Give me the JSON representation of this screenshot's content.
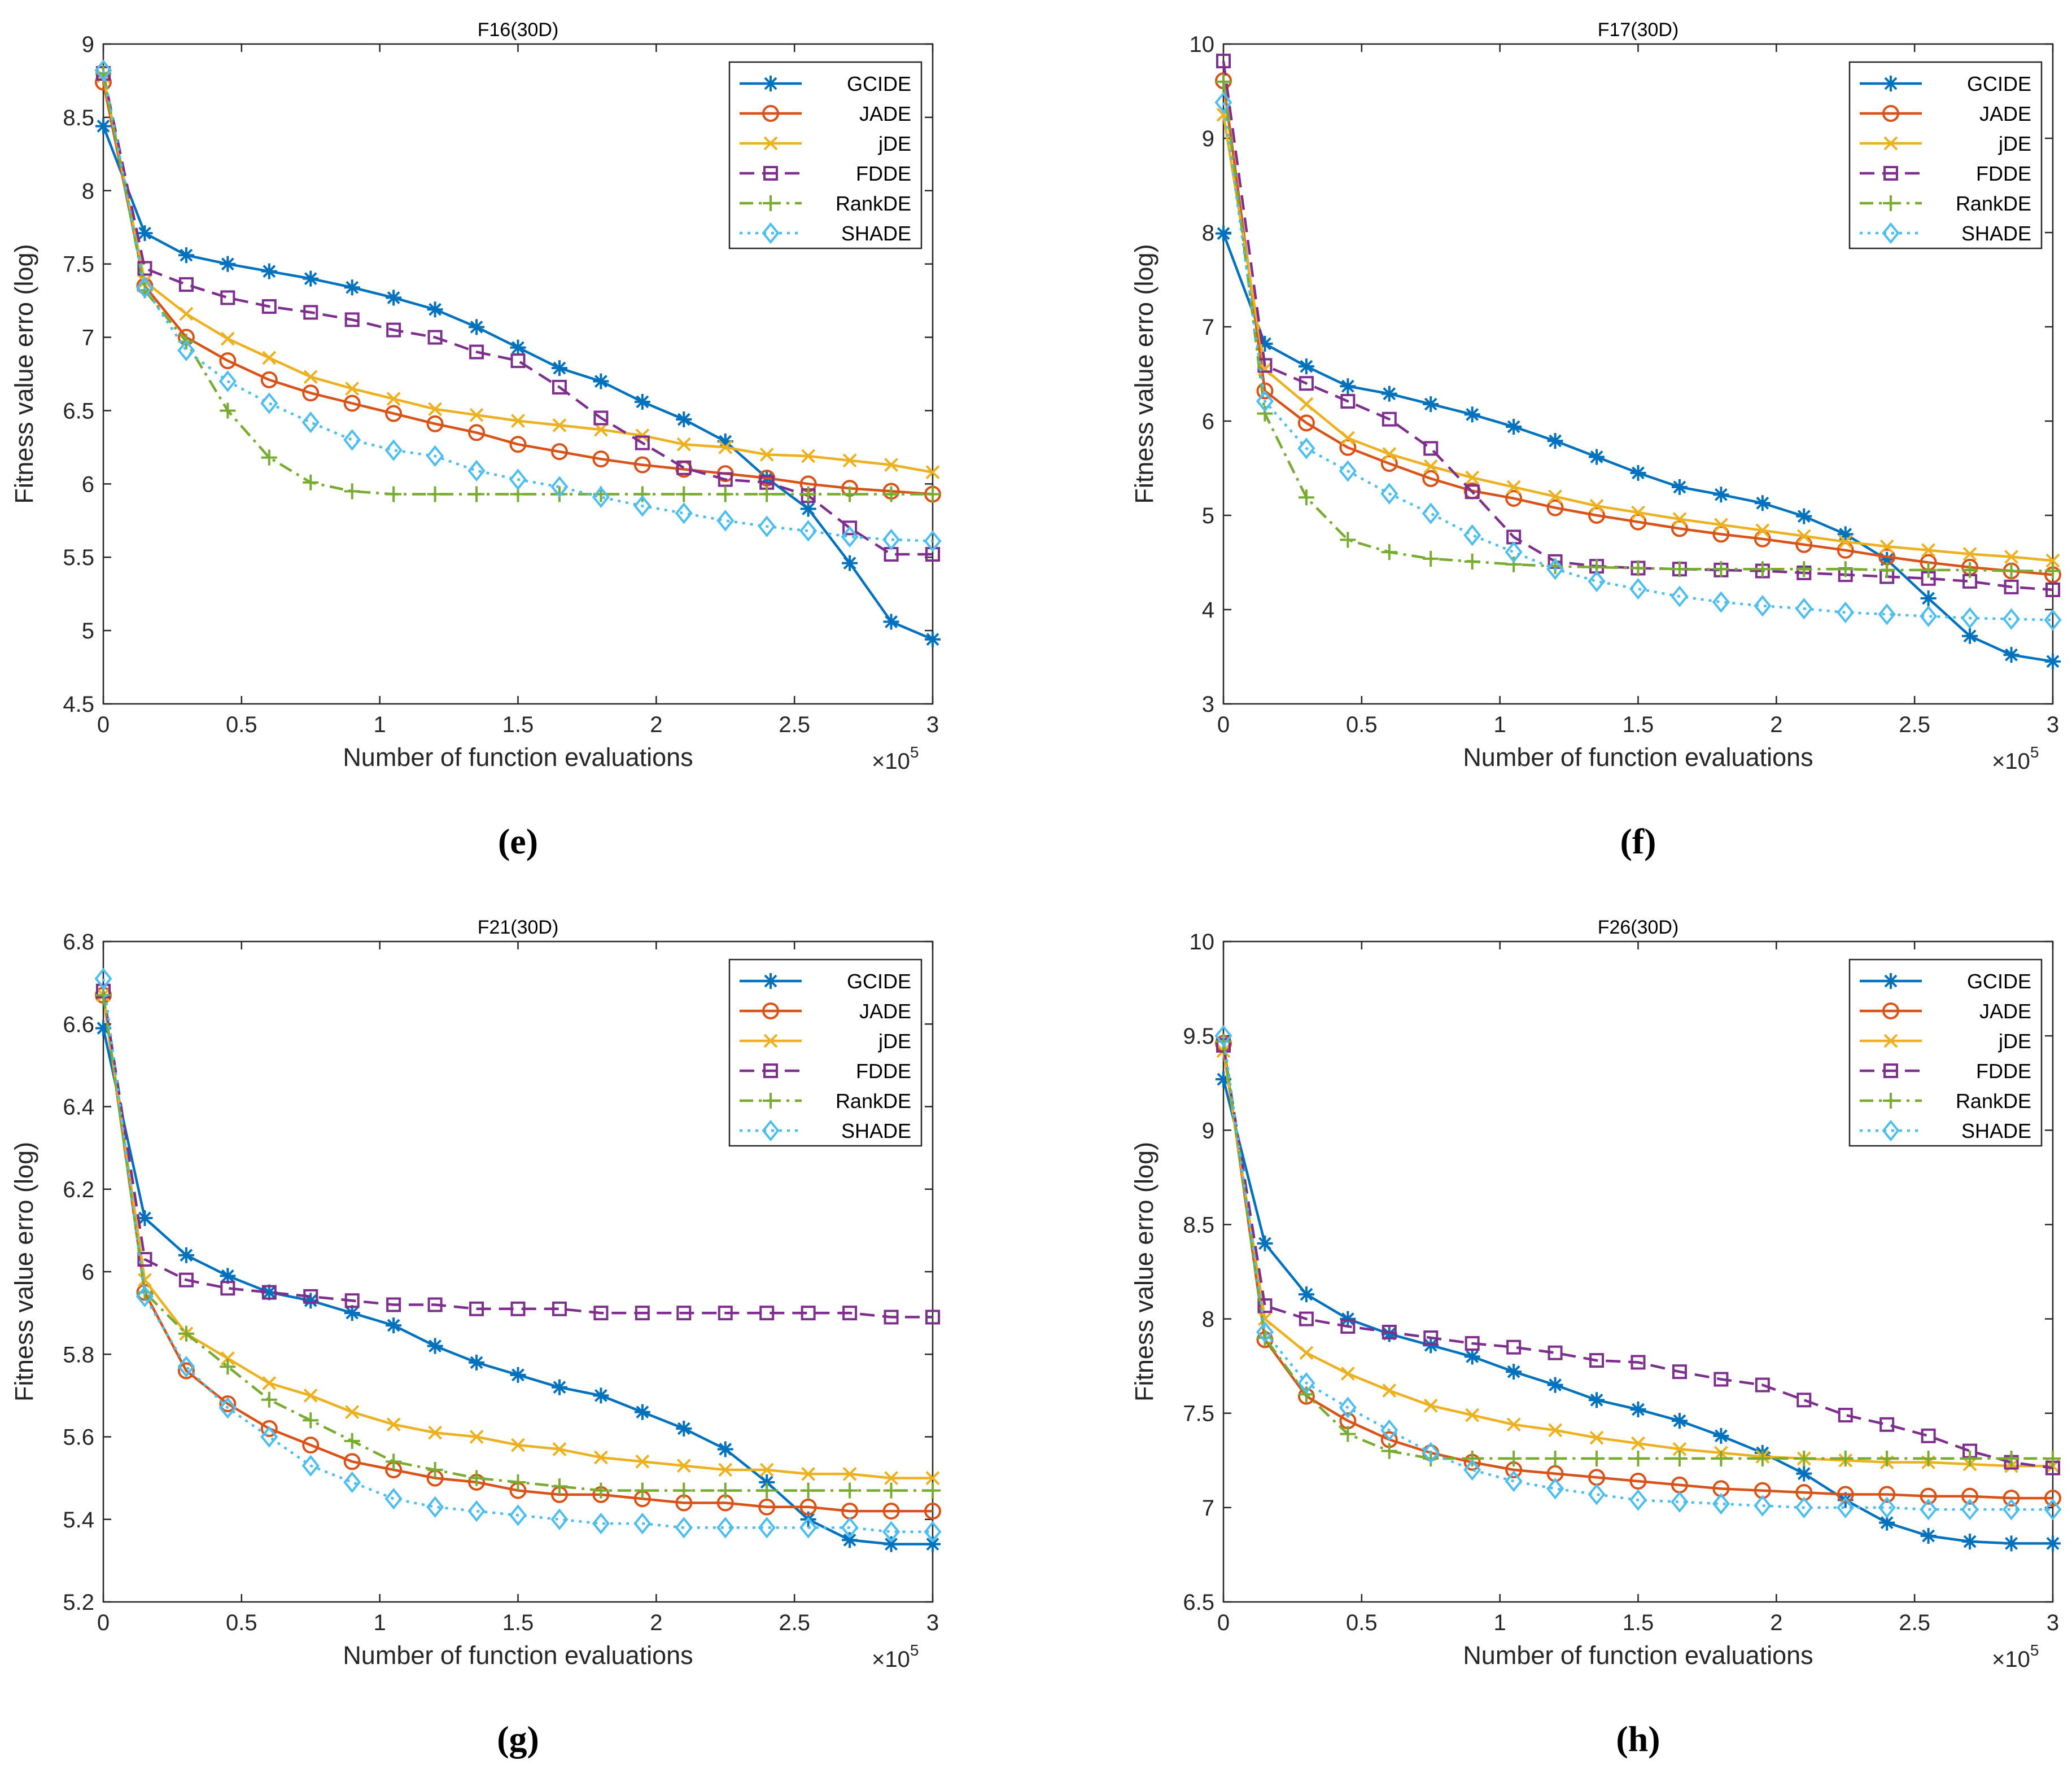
{
  "figure": {
    "series_styles": [
      {
        "name": "GCIDE",
        "color": "#0072BD",
        "dash": "",
        "marker": "asterisk"
      },
      {
        "name": "JADE",
        "color": "#D95319",
        "dash": "",
        "marker": "circle"
      },
      {
        "name": "jDE",
        "color": "#EDB120",
        "dash": "",
        "marker": "cross"
      },
      {
        "name": "FDDE",
        "color": "#7E2F8E",
        "dash": "dash",
        "marker": "square"
      },
      {
        "name": "RankDE",
        "color": "#77AC30",
        "dash": "dashdot",
        "marker": "plus"
      },
      {
        "name": "SHADE",
        "color": "#4DBEEE",
        "dash": "dot",
        "marker": "diamond"
      }
    ]
  },
  "chart_data": [
    {
      "type": "line",
      "title": "F16(30D)",
      "caption": "(e)",
      "xlabel": "Number of function evaluations",
      "ylabel": "Fitness value erro (log)",
      "x_multiplier": "×10",
      "x_exponent": "5",
      "xlim": [
        0,
        3
      ],
      "ylim": [
        4.5,
        9
      ],
      "xticks": [
        0,
        0.5,
        1,
        1.5,
        2,
        2.5,
        3
      ],
      "xtick_labels": [
        "0",
        "0.5",
        "1",
        "1.5",
        "2",
        "2.5",
        "3"
      ],
      "yticks": [
        4.5,
        5,
        5.5,
        6,
        6.5,
        7,
        7.5,
        8,
        8.5,
        9
      ],
      "ytick_labels": [
        "4.5",
        "5",
        "5.5",
        "6",
        "6.5",
        "7",
        "7.5",
        "8",
        "8.5",
        "9"
      ],
      "legend_position": "top-right",
      "x": [
        0,
        0.15,
        0.3,
        0.45,
        0.6,
        0.75,
        0.9,
        1.05,
        1.2,
        1.35,
        1.5,
        1.65,
        1.8,
        1.95,
        2.1,
        2.25,
        2.4,
        2.55,
        2.7,
        2.85,
        3.0
      ],
      "series": [
        {
          "name": "GCIDE",
          "values": [
            8.44,
            7.71,
            7.56,
            7.5,
            7.45,
            7.4,
            7.34,
            7.27,
            7.19,
            7.07,
            6.93,
            6.79,
            6.7,
            6.56,
            6.44,
            6.29,
            6.04,
            5.83,
            5.46,
            5.06,
            4.94
          ]
        },
        {
          "name": "JADE",
          "values": [
            8.74,
            7.35,
            7.0,
            6.84,
            6.71,
            6.62,
            6.55,
            6.48,
            6.41,
            6.35,
            6.27,
            6.22,
            6.17,
            6.13,
            6.1,
            6.07,
            6.04,
            6.0,
            5.97,
            5.95,
            5.93
          ]
        },
        {
          "name": "jDE",
          "values": [
            8.78,
            7.38,
            7.16,
            6.99,
            6.86,
            6.73,
            6.65,
            6.58,
            6.51,
            6.47,
            6.43,
            6.4,
            6.37,
            6.33,
            6.27,
            6.25,
            6.2,
            6.19,
            6.16,
            6.13,
            6.08
          ]
        },
        {
          "name": "FDDE",
          "values": [
            8.8,
            7.47,
            7.36,
            7.27,
            7.21,
            7.17,
            7.12,
            7.05,
            7.0,
            6.9,
            6.84,
            6.66,
            6.45,
            6.28,
            6.11,
            6.03,
            6.01,
            5.92,
            5.7,
            5.52,
            5.52
          ]
        },
        {
          "name": "RankDE",
          "values": [
            8.8,
            7.32,
            6.97,
            6.5,
            6.18,
            6.01,
            5.95,
            5.93,
            5.93,
            5.93,
            5.93,
            5.93,
            5.93,
            5.93,
            5.93,
            5.93,
            5.93,
            5.93,
            5.93,
            5.93,
            5.93
          ]
        },
        {
          "name": "SHADE",
          "values": [
            8.82,
            7.34,
            6.91,
            6.7,
            6.55,
            6.42,
            6.3,
            6.23,
            6.19,
            6.09,
            6.03,
            5.98,
            5.91,
            5.85,
            5.8,
            5.75,
            5.71,
            5.68,
            5.64,
            5.62,
            5.61
          ]
        }
      ]
    },
    {
      "type": "line",
      "title": "F17(30D)",
      "caption": "(f)",
      "xlabel": "Number of function evaluations",
      "ylabel": "Fitness value erro (log)",
      "x_multiplier": "×10",
      "x_exponent": "5",
      "xlim": [
        0,
        3
      ],
      "ylim": [
        3,
        10
      ],
      "xticks": [
        0,
        0.5,
        1,
        1.5,
        2,
        2.5,
        3
      ],
      "xtick_labels": [
        "0",
        "0.5",
        "1",
        "1.5",
        "2",
        "2.5",
        "3"
      ],
      "yticks": [
        3,
        4,
        5,
        6,
        7,
        8,
        9,
        10
      ],
      "ytick_labels": [
        "3",
        "4",
        "5",
        "6",
        "7",
        "8",
        "9",
        "10"
      ],
      "legend_position": "top-right",
      "x": [
        0,
        0.15,
        0.3,
        0.45,
        0.6,
        0.75,
        0.9,
        1.05,
        1.2,
        1.35,
        1.5,
        1.65,
        1.8,
        1.95,
        2.1,
        2.25,
        2.4,
        2.55,
        2.7,
        2.85,
        3.0
      ],
      "series": [
        {
          "name": "GCIDE",
          "values": [
            7.99,
            6.82,
            6.58,
            6.37,
            6.29,
            6.18,
            6.07,
            5.94,
            5.79,
            5.62,
            5.45,
            5.3,
            5.22,
            5.13,
            4.99,
            4.8,
            4.53,
            4.12,
            3.72,
            3.52,
            3.45
          ]
        },
        {
          "name": "JADE",
          "values": [
            9.61,
            6.32,
            5.98,
            5.72,
            5.55,
            5.39,
            5.26,
            5.18,
            5.08,
            5.0,
            4.93,
            4.86,
            4.8,
            4.75,
            4.69,
            4.63,
            4.56,
            4.5,
            4.45,
            4.41,
            4.37
          ]
        },
        {
          "name": "jDE",
          "values": [
            9.25,
            6.55,
            6.18,
            5.82,
            5.65,
            5.52,
            5.4,
            5.3,
            5.2,
            5.1,
            5.03,
            4.96,
            4.9,
            4.84,
            4.78,
            4.72,
            4.67,
            4.63,
            4.59,
            4.56,
            4.52
          ]
        },
        {
          "name": "FDDE",
          "values": [
            9.82,
            6.59,
            6.4,
            6.21,
            6.02,
            5.71,
            5.25,
            4.77,
            4.51,
            4.46,
            4.44,
            4.43,
            4.42,
            4.41,
            4.39,
            4.37,
            4.35,
            4.33,
            4.3,
            4.24,
            4.21
          ]
        },
        {
          "name": "RankDE",
          "values": [
            9.6,
            6.08,
            5.19,
            4.74,
            4.61,
            4.54,
            4.51,
            4.48,
            4.46,
            4.45,
            4.44,
            4.43,
            4.43,
            4.43,
            4.43,
            4.43,
            4.42,
            4.42,
            4.42,
            4.41,
            4.41
          ]
        },
        {
          "name": "SHADE",
          "values": [
            9.38,
            6.21,
            5.71,
            5.47,
            5.23,
            5.02,
            4.79,
            4.61,
            4.43,
            4.3,
            4.22,
            4.14,
            4.08,
            4.04,
            4.01,
            3.97,
            3.95,
            3.93,
            3.91,
            3.9,
            3.89
          ]
        }
      ]
    },
    {
      "type": "line",
      "title": "F21(30D)",
      "caption": "(g)",
      "xlabel": "Number of function evaluations",
      "ylabel": "Fitness value erro (log)",
      "x_multiplier": "×10",
      "x_exponent": "5",
      "xlim": [
        0,
        3
      ],
      "ylim": [
        5.2,
        6.8
      ],
      "xticks": [
        0,
        0.5,
        1,
        1.5,
        2,
        2.5,
        3
      ],
      "xtick_labels": [
        "0",
        "0.5",
        "1",
        "1.5",
        "2",
        "2.5",
        "3"
      ],
      "yticks": [
        5.2,
        5.4,
        5.6,
        5.8,
        6.0,
        6.2,
        6.4,
        6.6,
        6.8
      ],
      "ytick_labels": [
        "5.2",
        "5.4",
        "5.6",
        "5.8",
        "6",
        "6.2",
        "6.4",
        "6.6",
        "6.8"
      ],
      "legend_position": "top-right",
      "x": [
        0,
        0.15,
        0.3,
        0.45,
        0.6,
        0.75,
        0.9,
        1.05,
        1.2,
        1.35,
        1.5,
        1.65,
        1.8,
        1.95,
        2.1,
        2.25,
        2.4,
        2.55,
        2.7,
        2.85,
        3.0
      ],
      "series": [
        {
          "name": "GCIDE",
          "values": [
            6.59,
            6.13,
            6.04,
            5.99,
            5.95,
            5.93,
            5.9,
            5.87,
            5.82,
            5.78,
            5.75,
            5.72,
            5.7,
            5.66,
            5.62,
            5.57,
            5.49,
            5.4,
            5.35,
            5.34,
            5.34
          ]
        },
        {
          "name": "JADE",
          "values": [
            6.67,
            5.95,
            5.76,
            5.68,
            5.62,
            5.58,
            5.54,
            5.52,
            5.5,
            5.49,
            5.47,
            5.46,
            5.46,
            5.45,
            5.44,
            5.44,
            5.43,
            5.43,
            5.42,
            5.42,
            5.42
          ]
        },
        {
          "name": "jDE",
          "values": [
            6.67,
            5.98,
            5.85,
            5.79,
            5.73,
            5.7,
            5.66,
            5.63,
            5.61,
            5.6,
            5.58,
            5.57,
            5.55,
            5.54,
            5.53,
            5.52,
            5.52,
            5.51,
            5.51,
            5.5,
            5.5
          ]
        },
        {
          "name": "FDDE",
          "values": [
            6.68,
            6.03,
            5.98,
            5.96,
            5.95,
            5.94,
            5.93,
            5.92,
            5.92,
            5.91,
            5.91,
            5.91,
            5.9,
            5.9,
            5.9,
            5.9,
            5.9,
            5.9,
            5.9,
            5.89,
            5.89
          ]
        },
        {
          "name": "RankDE",
          "values": [
            6.67,
            5.95,
            5.85,
            5.77,
            5.69,
            5.64,
            5.59,
            5.54,
            5.52,
            5.5,
            5.49,
            5.48,
            5.47,
            5.47,
            5.47,
            5.47,
            5.47,
            5.47,
            5.47,
            5.47,
            5.47
          ]
        },
        {
          "name": "SHADE",
          "values": [
            6.71,
            5.94,
            5.77,
            5.67,
            5.6,
            5.53,
            5.49,
            5.45,
            5.43,
            5.42,
            5.41,
            5.4,
            5.39,
            5.39,
            5.38,
            5.38,
            5.38,
            5.38,
            5.38,
            5.37,
            5.37
          ]
        }
      ]
    },
    {
      "type": "line",
      "title": "F26(30D)",
      "caption": "(h)",
      "xlabel": "Number of function evaluations",
      "ylabel": "Fitness value erro (log)",
      "x_multiplier": "×10",
      "x_exponent": "5",
      "xlim": [
        0,
        3
      ],
      "ylim": [
        6.5,
        10
      ],
      "xticks": [
        0,
        0.5,
        1,
        1.5,
        2,
        2.5,
        3
      ],
      "xtick_labels": [
        "0",
        "0.5",
        "1",
        "1.5",
        "2",
        "2.5",
        "3"
      ],
      "yticks": [
        6.5,
        7,
        7.5,
        8,
        8.5,
        9,
        9.5,
        10
      ],
      "ytick_labels": [
        "6.5",
        "7",
        "7.5",
        "8",
        "8.5",
        "9",
        "9.5",
        "10"
      ],
      "legend_position": "top-right",
      "x": [
        0,
        0.15,
        0.3,
        0.45,
        0.6,
        0.75,
        0.9,
        1.05,
        1.2,
        1.35,
        1.5,
        1.65,
        1.8,
        1.95,
        2.1,
        2.25,
        2.4,
        2.55,
        2.7,
        2.85,
        3.0
      ],
      "series": [
        {
          "name": "GCIDE",
          "values": [
            9.27,
            8.4,
            8.13,
            8.0,
            7.92,
            7.86,
            7.8,
            7.72,
            7.65,
            7.57,
            7.52,
            7.46,
            7.38,
            7.29,
            7.18,
            7.04,
            6.92,
            6.85,
            6.82,
            6.81,
            6.81
          ]
        },
        {
          "name": "JADE",
          "values": [
            9.46,
            7.89,
            7.59,
            7.46,
            7.36,
            7.29,
            7.24,
            7.2,
            7.18,
            7.16,
            7.14,
            7.12,
            7.1,
            7.09,
            7.08,
            7.07,
            7.07,
            7.06,
            7.06,
            7.05,
            7.05
          ]
        },
        {
          "name": "jDE",
          "values": [
            9.42,
            8.0,
            7.82,
            7.71,
            7.62,
            7.54,
            7.49,
            7.44,
            7.41,
            7.37,
            7.34,
            7.31,
            7.29,
            7.27,
            7.26,
            7.25,
            7.24,
            7.24,
            7.23,
            7.22,
            7.22
          ]
        },
        {
          "name": "FDDE",
          "values": [
            9.45,
            8.07,
            8.0,
            7.96,
            7.93,
            7.9,
            7.87,
            7.85,
            7.82,
            7.78,
            7.77,
            7.72,
            7.68,
            7.65,
            7.57,
            7.49,
            7.44,
            7.38,
            7.3,
            7.24,
            7.21
          ]
        },
        {
          "name": "RankDE",
          "values": [
            9.47,
            7.9,
            7.6,
            7.39,
            7.3,
            7.26,
            7.26,
            7.26,
            7.26,
            7.26,
            7.26,
            7.26,
            7.26,
            7.26,
            7.26,
            7.26,
            7.26,
            7.26,
            7.26,
            7.26,
            7.26
          ]
        },
        {
          "name": "SHADE",
          "values": [
            9.5,
            7.93,
            7.66,
            7.53,
            7.41,
            7.29,
            7.2,
            7.14,
            7.1,
            7.07,
            7.04,
            7.03,
            7.02,
            7.01,
            7.0,
            7.0,
            7.0,
            6.99,
            6.99,
            6.99,
            6.99
          ]
        }
      ]
    }
  ]
}
